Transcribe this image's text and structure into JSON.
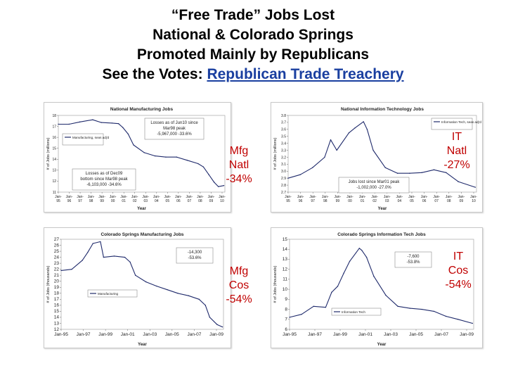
{
  "title": {
    "line1": "“Free Trade” Jobs Lost",
    "line2": "National & Colorado Springs",
    "line3": "Promoted Mainly by Republicans",
    "line4_prefix": "See the Votes: ",
    "line4_link": "Republican Trade Treachery"
  },
  "labels": {
    "mfg_natl": [
      "Mfg",
      "Natl",
      "-34%"
    ],
    "it_natl": [
      "IT",
      "Natl",
      "-27%"
    ],
    "mfg_cos": [
      "Mfg",
      "Cos",
      "-54%"
    ],
    "it_cos": [
      "IT",
      "Cos",
      "-54%"
    ]
  },
  "colors": {
    "series": "#1f2a6b",
    "red_label": "#c00000",
    "link": "#1a3fa0"
  },
  "chart_data": [
    {
      "id": "mfg_natl",
      "type": "line",
      "title": "National Manufacturing Jobs",
      "xlabel": "Year",
      "ylabel": "# of Jobs (millions)",
      "ylim": [
        11,
        18
      ],
      "yticks": [
        11,
        12,
        13,
        14,
        15,
        16,
        17,
        18
      ],
      "xlim": [
        1995,
        2010.5
      ],
      "xticks": [
        "Jan-95",
        "Jan-96",
        "Jan-97",
        "Jan-98",
        "Jan-99",
        "Jan-00",
        "Jan-01",
        "Jan-02",
        "Jan-03",
        "Jan-04",
        "Jan-05",
        "Jan-06",
        "Jan-07",
        "Jan-08",
        "Jan-09",
        "Jan-10"
      ],
      "legend": "Manufacturing, seas adj'd",
      "annotations": [
        [
          "Losses as of Jun10 since",
          "Mar98 peak",
          "-5,967,000   -33.6%"
        ],
        [
          "Losses as of Dec09",
          "bottom since Mar98 peak",
          "-6,103,000   -34.6%"
        ]
      ],
      "series": [
        {
          "x": [
            1995,
            1996,
            1997,
            1998.2,
            1999,
            2000,
            2000.6,
            2001,
            2001.5,
            2002,
            2003,
            2004,
            2005,
            2006,
            2007,
            2008,
            2008.5,
            2009,
            2009.5,
            2009.9,
            2010.4
          ],
          "y": [
            17.2,
            17.2,
            17.4,
            17.6,
            17.35,
            17.3,
            17.25,
            16.9,
            16.3,
            15.3,
            14.6,
            14.3,
            14.2,
            14.2,
            13.9,
            13.6,
            13.3,
            12.6,
            11.9,
            11.5,
            11.6
          ]
        }
      ]
    },
    {
      "id": "it_natl",
      "type": "line",
      "title": "National Information Technology Jobs",
      "xlabel": "Year",
      "ylabel": "# of Jobs (millions)",
      "ylim": [
        2.7,
        3.8
      ],
      "yticks": [
        2.7,
        2.8,
        2.9,
        3.0,
        3.1,
        3.2,
        3.3,
        3.4,
        3.5,
        3.6,
        3.7,
        3.8
      ],
      "xlim": [
        1995,
        2010.5
      ],
      "xticks": [
        "Jan-95",
        "Jan-96",
        "Jan-97",
        "Jan-98",
        "Jan-99",
        "Jan-00",
        "Jan-01",
        "Jan-02",
        "Jan-03",
        "Jan-04",
        "Jan-05",
        "Jan-06",
        "Jan-07",
        "Jan-08",
        "Jan-09",
        "Jan-10"
      ],
      "legend": "Information Tech, seas adj'd",
      "annotations": [
        [
          "Jobs lost since Mar01 peak",
          "-1,002,000   -27.0%"
        ]
      ],
      "series": [
        {
          "x": [
            1995,
            1996,
            1997,
            1998,
            1998.5,
            1999,
            2000,
            2000.5,
            2001.2,
            2001.5,
            2002,
            2003,
            2004,
            2005,
            2006,
            2007,
            2008,
            2009,
            2010.4
          ],
          "y": [
            2.9,
            2.95,
            3.05,
            3.2,
            3.45,
            3.3,
            3.55,
            3.62,
            3.71,
            3.6,
            3.3,
            3.05,
            2.97,
            2.97,
            2.98,
            3.02,
            2.98,
            2.85,
            2.77
          ]
        }
      ]
    },
    {
      "id": "mfg_cos",
      "type": "line",
      "title": "Colorado Springs Manufacturing Jobs",
      "xlabel": "Year",
      "ylabel": "# of Jobs (thousands)",
      "ylim": [
        12,
        27
      ],
      "yticks": [
        12,
        13,
        14,
        15,
        16,
        17,
        18,
        19,
        20,
        21,
        22,
        23,
        24,
        25,
        26,
        27
      ],
      "xlim": [
        1995,
        2010.3
      ],
      "xticks": [
        "Jan-95",
        "Jan-97",
        "Jan-99",
        "Jan-01",
        "Jan-03",
        "Jan-05",
        "Jan-07",
        "Jan-09"
      ],
      "legend": "Manufacturing",
      "annotations": [
        [
          "-14,300",
          "-53.6%"
        ]
      ],
      "series": [
        {
          "x": [
            1995,
            1996,
            1997,
            1997.5,
            1998,
            1998.7,
            1999,
            2000,
            2001,
            2001.5,
            2002,
            2003,
            2004,
            2005,
            2006,
            2007,
            2008,
            2008.6,
            2009,
            2009.7,
            2010.2
          ],
          "y": [
            21.8,
            22,
            23.5,
            24.8,
            26.3,
            26.6,
            24,
            24.2,
            24,
            23.2,
            21,
            19.9,
            19.2,
            18.6,
            18,
            17.6,
            17,
            16,
            14,
            12.8,
            12.4
          ]
        }
      ]
    },
    {
      "id": "it_cos",
      "type": "line",
      "title": "Colorado Springs Information Tech Jobs",
      "xlabel": "Year",
      "ylabel": "# of Jobs (thousands)",
      "ylim": [
        6,
        15
      ],
      "yticks": [
        6,
        7,
        8,
        9,
        10,
        11,
        12,
        13,
        14,
        15
      ],
      "xlim": [
        1995,
        2010.3
      ],
      "xticks": [
        "Jan-95",
        "Jan-97",
        "Jan-99",
        "Jan-01",
        "Jan-03",
        "Jan-05",
        "Jan-07",
        "Jan-09"
      ],
      "legend": "Information Tech",
      "annotations": [
        [
          "-7,600",
          "-53.8%"
        ]
      ],
      "series": [
        {
          "x": [
            1995,
            1996,
            1997,
            1998,
            1998.5,
            1999,
            1999.5,
            2000,
            2000.8,
            2001,
            2001.4,
            2002,
            2003,
            2004,
            2005,
            2006,
            2007,
            2008,
            2009,
            2010.2
          ],
          "y": [
            7.2,
            7.5,
            8.3,
            8.2,
            9.7,
            10.3,
            11.6,
            12.8,
            14.1,
            13.9,
            13.2,
            11.3,
            9.4,
            8.3,
            8.1,
            8.0,
            7.8,
            7.3,
            7.0,
            6.6
          ]
        }
      ]
    }
  ]
}
